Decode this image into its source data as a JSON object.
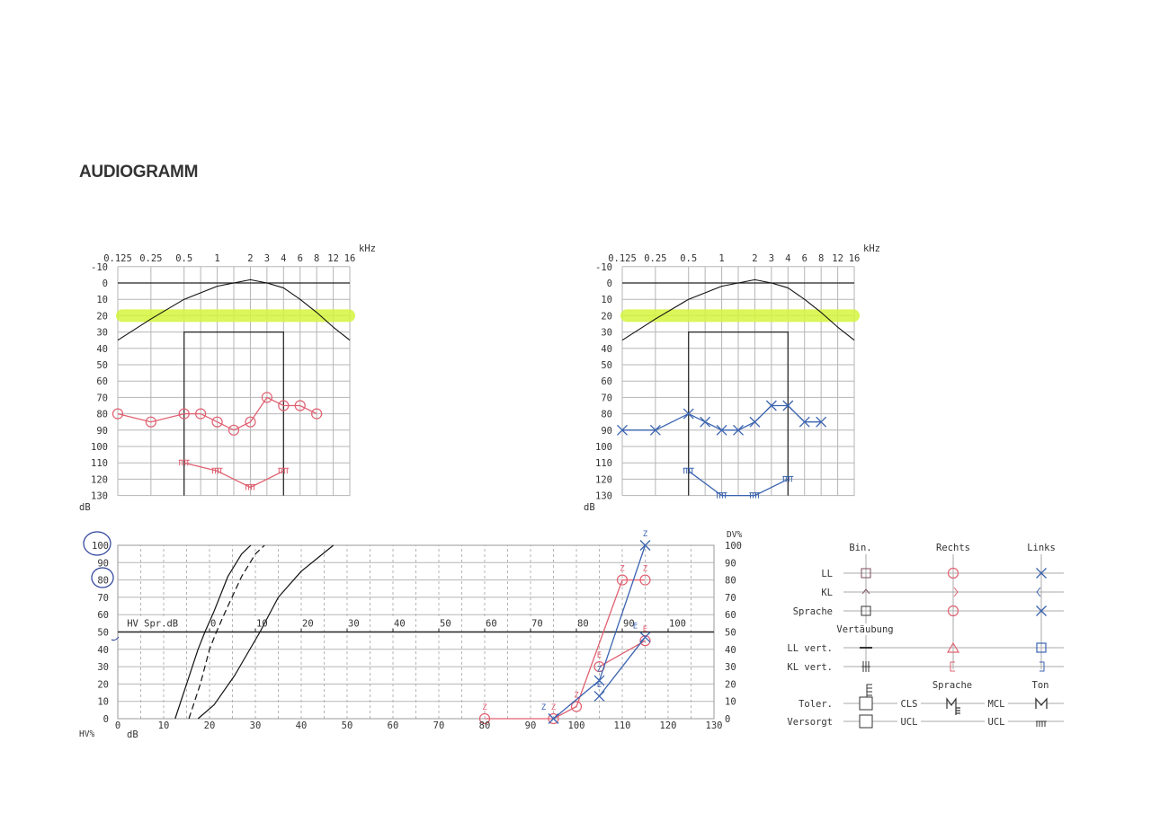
{
  "title": "AUDIOGRAMM",
  "colors": {
    "right": "#e06070",
    "left": "#3a63b0",
    "curve": "#111111",
    "grid": "#b5b5b5",
    "highlight": "#d4f53c",
    "annotation": "#2a3f9a"
  },
  "chart_data": [
    {
      "type": "line",
      "ear": "Rechts",
      "x_unit": "kHz",
      "y_unit": "dB",
      "x_ticks": [
        "0.125",
        "0.25",
        "0.5",
        "1",
        "2",
        "3",
        "4",
        "6",
        "8",
        "12",
        "16"
      ],
      "y_ticks": [
        "-10",
        "0",
        "10",
        "20",
        "30",
        "40",
        "50",
        "60",
        "70",
        "80",
        "90",
        "100",
        "110",
        "120",
        "130"
      ],
      "ylim": [
        -10,
        130
      ],
      "y_inverted": true,
      "grid": true,
      "highlight_level_db": 20,
      "reference_curve": [
        [
          0.125,
          35
        ],
        [
          0.25,
          22
        ],
        [
          0.5,
          10
        ],
        [
          1,
          2
        ],
        [
          2,
          -2
        ],
        [
          3,
          0
        ],
        [
          4,
          3
        ],
        [
          6,
          10
        ],
        [
          8,
          18
        ],
        [
          12,
          27
        ],
        [
          16,
          35
        ]
      ],
      "speech_area": {
        "x": [
          0.5,
          4
        ],
        "y_top": 30
      },
      "series": [
        {
          "symbol": "circle",
          "points": [
            [
              0.125,
              80
            ],
            [
              0.25,
              85
            ],
            [
              0.5,
              80
            ],
            [
              0.75,
              80
            ],
            [
              1,
              85
            ],
            [
              1.5,
              90
            ],
            [
              2,
              85
            ],
            [
              3,
              70
            ],
            [
              4,
              75
            ],
            [
              6,
              75
            ],
            [
              8,
              80
            ]
          ]
        },
        {
          "symbol": "ucl",
          "points": [
            [
              0.5,
              110
            ],
            [
              1,
              115
            ],
            [
              2,
              125
            ],
            [
              4,
              115
            ]
          ]
        }
      ]
    },
    {
      "type": "line",
      "ear": "Links",
      "x_unit": "kHz",
      "y_unit": "dB",
      "x_ticks": [
        "0.125",
        "0.25",
        "0.5",
        "1",
        "2",
        "3",
        "4",
        "6",
        "8",
        "12",
        "16"
      ],
      "y_ticks": [
        "-10",
        "0",
        "10",
        "20",
        "30",
        "40",
        "50",
        "60",
        "70",
        "80",
        "90",
        "100",
        "110",
        "120",
        "130"
      ],
      "ylim": [
        -10,
        130
      ],
      "y_inverted": true,
      "grid": true,
      "highlight_level_db": 20,
      "reference_curve": [
        [
          0.125,
          35
        ],
        [
          0.25,
          22
        ],
        [
          0.5,
          10
        ],
        [
          1,
          2
        ],
        [
          2,
          -2
        ],
        [
          3,
          0
        ],
        [
          4,
          3
        ],
        [
          6,
          10
        ],
        [
          8,
          18
        ],
        [
          12,
          27
        ],
        [
          16,
          35
        ]
      ],
      "speech_area": {
        "x": [
          0.5,
          4
        ],
        "y_top": 30
      },
      "series": [
        {
          "symbol": "cross",
          "points": [
            [
              0.125,
              90
            ],
            [
              0.25,
              90
            ],
            [
              0.5,
              80
            ],
            [
              0.75,
              85
            ],
            [
              1,
              90
            ],
            [
              1.5,
              90
            ],
            [
              2,
              85
            ],
            [
              3,
              75
            ],
            [
              4,
              75
            ],
            [
              6,
              85
            ],
            [
              8,
              85
            ]
          ]
        },
        {
          "symbol": "ucl",
          "points": [
            [
              0.5,
              115
            ],
            [
              1,
              130
            ],
            [
              2,
              130
            ],
            [
              4,
              120
            ]
          ]
        }
      ]
    },
    {
      "type": "line",
      "xlabel": "dB",
      "ylabel": "HV%",
      "y2label": "DV%",
      "top_axis_label": "HV Spr.dB",
      "x_ticks": [
        "0",
        "10",
        "20",
        "30",
        "40",
        "50",
        "60",
        "70",
        "80",
        "90",
        "100",
        "110",
        "120",
        "130"
      ],
      "top_ticks": [
        "0",
        "10",
        "20",
        "30",
        "40",
        "50",
        "60",
        "70",
        "80",
        "90",
        "100"
      ],
      "y_ticks": [
        "0",
        "10",
        "20",
        "30",
        "40",
        "50",
        "60",
        "70",
        "80",
        "90",
        "100"
      ],
      "y2_ticks": [
        "100",
        "90",
        "80",
        "70",
        "60",
        "50",
        "40",
        "30",
        "20",
        "10",
        "0"
      ],
      "xlim": [
        0,
        130
      ],
      "ylim": [
        0,
        100
      ],
      "grid": true,
      "annotations": [
        "100",
        "80"
      ],
      "reference_curves": [
        {
          "style": "solid",
          "points": [
            [
              12.5,
              0
            ],
            [
              15,
              20
            ],
            [
              17.5,
              40
            ],
            [
              19,
              50
            ],
            [
              21,
              62
            ],
            [
              24,
              82
            ],
            [
              27,
              95
            ],
            [
              29,
              100
            ]
          ]
        },
        {
          "style": "dashed",
          "points": [
            [
              15.5,
              0
            ],
            [
              18,
              20
            ],
            [
              20,
              40
            ],
            [
              21.5,
              50
            ],
            [
              23.5,
              62
            ],
            [
              27,
              82
            ],
            [
              30,
              95
            ],
            [
              32,
              100
            ]
          ]
        },
        {
          "style": "solid",
          "points": [
            [
              17.5,
              0
            ],
            [
              21,
              8
            ],
            [
              25.5,
              25
            ],
            [
              31,
              50
            ],
            [
              35,
              70
            ],
            [
              40,
              85
            ],
            [
              47,
              100
            ]
          ]
        }
      ],
      "series": [
        {
          "ear": "Rechts",
          "symbol": "circle",
          "label": "Z",
          "points": [
            [
              80,
              0
            ],
            [
              95,
              0
            ],
            [
              100,
              7
            ],
            [
              110,
              80
            ],
            [
              115,
              80
            ]
          ]
        },
        {
          "ear": "Rechts",
          "symbol": "circle",
          "label": "E",
          "points": [
            [
              105,
              30
            ],
            [
              115,
              45
            ]
          ]
        },
        {
          "ear": "Links",
          "symbol": "cross",
          "label": "Z",
          "points": [
            [
              95,
              0
            ],
            [
              105,
              22
            ],
            [
              115,
              100
            ]
          ]
        },
        {
          "ear": "Links",
          "symbol": "cross",
          "label": "E",
          "points": [
            [
              105,
              13
            ],
            [
              115,
              47
            ]
          ]
        }
      ]
    }
  ],
  "legend": {
    "columns": {
      "bin": "Bin.",
      "rechts": "Rechts",
      "links": "Links"
    },
    "rows": {
      "ll": "LL",
      "kl": "KL",
      "sprache": "Sprache",
      "vertaeubung": "Vertäubung",
      "ll_vert": "LL vert.",
      "kl_vert": "KL vert.",
      "toler": "Toler.",
      "versorgt": "Versorgt"
    },
    "subheaders": {
      "sprache": "Sprache",
      "ton": "Ton"
    },
    "tags": {
      "cls": "CLS",
      "mcl": "MCL",
      "ucl1": "UCL",
      "ucl2": "UCL"
    }
  }
}
